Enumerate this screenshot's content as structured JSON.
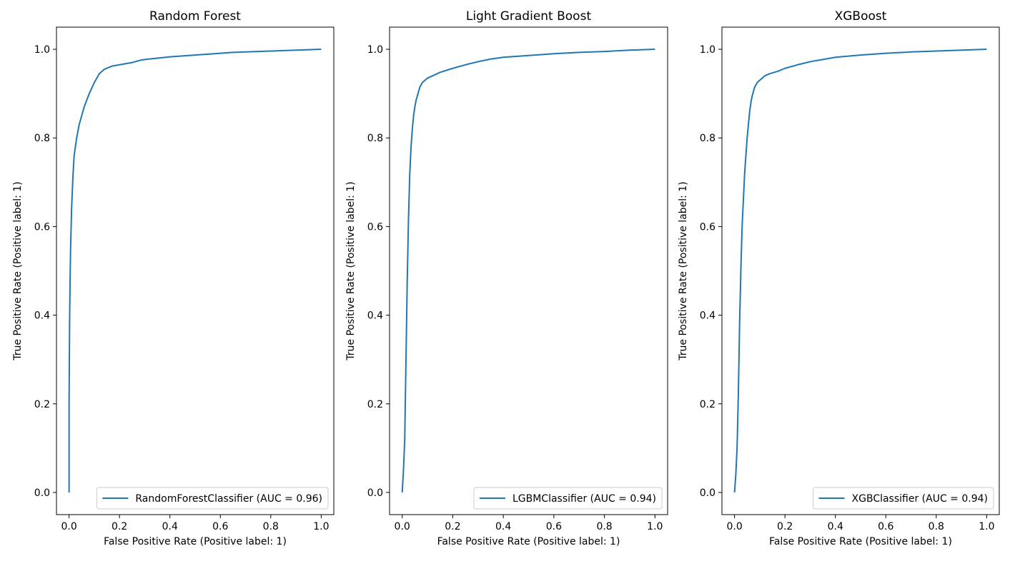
{
  "chart_data": [
    {
      "type": "line",
      "title": "Random Forest",
      "xlabel": "False Positive Rate (Positive label: 1)",
      "ylabel": "True Positive Rate (Positive label: 1)",
      "xlim": [
        -0.05,
        1.05
      ],
      "ylim": [
        -0.05,
        1.05
      ],
      "xticks": [
        "0.0",
        "0.2",
        "0.4",
        "0.6",
        "0.8",
        "1.0"
      ],
      "yticks": [
        "0.0",
        "0.2",
        "0.4",
        "0.6",
        "0.8",
        "1.0"
      ],
      "grid": false,
      "legend_position": "lower-right",
      "series": [
        {
          "name": "RandomForestClassifier (AUC = 0.96)",
          "color": "#1f77b4",
          "x": [
            0.0,
            0.0,
            0.002,
            0.004,
            0.006,
            0.01,
            0.015,
            0.02,
            0.03,
            0.04,
            0.06,
            0.08,
            0.1,
            0.12,
            0.14,
            0.17,
            0.2,
            0.22,
            0.25,
            0.28,
            0.3,
            0.35,
            0.4,
            0.45,
            0.5,
            0.55,
            0.6,
            0.65,
            0.7,
            0.75,
            0.8,
            0.85,
            0.9,
            0.95,
            1.0
          ],
          "y": [
            0.0,
            0.2,
            0.38,
            0.48,
            0.55,
            0.64,
            0.71,
            0.76,
            0.8,
            0.83,
            0.87,
            0.9,
            0.925,
            0.945,
            0.955,
            0.962,
            0.965,
            0.967,
            0.97,
            0.975,
            0.977,
            0.98,
            0.983,
            0.985,
            0.987,
            0.989,
            0.991,
            0.993,
            0.994,
            0.995,
            0.996,
            0.997,
            0.998,
            0.999,
            1.0
          ]
        }
      ]
    },
    {
      "type": "line",
      "title": "Light Gradient Boost",
      "xlabel": "False Positive Rate (Positive label: 1)",
      "ylabel": "True Positive Rate (Positive label: 1)",
      "xlim": [
        -0.05,
        1.05
      ],
      "ylim": [
        -0.05,
        1.05
      ],
      "xticks": [
        "0.0",
        "0.2",
        "0.4",
        "0.6",
        "0.8",
        "1.0"
      ],
      "yticks": [
        "0.0",
        "0.2",
        "0.4",
        "0.6",
        "0.8",
        "1.0"
      ],
      "grid": false,
      "legend_position": "lower-right",
      "series": [
        {
          "name": "LGBMClassifier (AUC = 0.94)",
          "color": "#1f77b4",
          "x": [
            0.0,
            0.005,
            0.01,
            0.015,
            0.02,
            0.025,
            0.03,
            0.035,
            0.04,
            0.045,
            0.05,
            0.055,
            0.06,
            0.065,
            0.07,
            0.08,
            0.09,
            0.1,
            0.12,
            0.15,
            0.2,
            0.25,
            0.3,
            0.35,
            0.4,
            0.5,
            0.6,
            0.7,
            0.8,
            0.9,
            1.0
          ],
          "y": [
            0.0,
            0.05,
            0.12,
            0.3,
            0.48,
            0.62,
            0.72,
            0.78,
            0.82,
            0.85,
            0.87,
            0.885,
            0.895,
            0.905,
            0.915,
            0.925,
            0.93,
            0.935,
            0.94,
            0.948,
            0.957,
            0.965,
            0.972,
            0.978,
            0.982,
            0.986,
            0.99,
            0.993,
            0.995,
            0.998,
            1.0
          ]
        }
      ]
    },
    {
      "type": "line",
      "title": "XGBoost",
      "xlabel": "False Positive Rate (Positive label: 1)",
      "ylabel": "True Positive Rate (Positive label: 1)",
      "xlim": [
        -0.05,
        1.05
      ],
      "ylim": [
        -0.05,
        1.05
      ],
      "xticks": [
        "0.0",
        "0.2",
        "0.4",
        "0.6",
        "0.8",
        "1.0"
      ],
      "yticks": [
        "0.0",
        "0.2",
        "0.4",
        "0.6",
        "0.8",
        "1.0"
      ],
      "grid": false,
      "legend_position": "lower-right",
      "series": [
        {
          "name": "XGBClassifier (AUC = 0.94)",
          "color": "#1f77b4",
          "x": [
            0.0,
            0.005,
            0.01,
            0.015,
            0.02,
            0.025,
            0.03,
            0.035,
            0.04,
            0.045,
            0.05,
            0.055,
            0.06,
            0.065,
            0.07,
            0.075,
            0.08,
            0.09,
            0.1,
            0.12,
            0.14,
            0.17,
            0.2,
            0.25,
            0.3,
            0.35,
            0.4,
            0.5,
            0.6,
            0.7,
            0.8,
            0.9,
            1.0
          ],
          "y": [
            0.0,
            0.04,
            0.1,
            0.22,
            0.38,
            0.5,
            0.6,
            0.66,
            0.72,
            0.76,
            0.8,
            0.83,
            0.86,
            0.88,
            0.895,
            0.905,
            0.915,
            0.925,
            0.93,
            0.94,
            0.945,
            0.95,
            0.957,
            0.965,
            0.972,
            0.977,
            0.982,
            0.987,
            0.991,
            0.994,
            0.996,
            0.998,
            1.0
          ]
        }
      ]
    }
  ]
}
